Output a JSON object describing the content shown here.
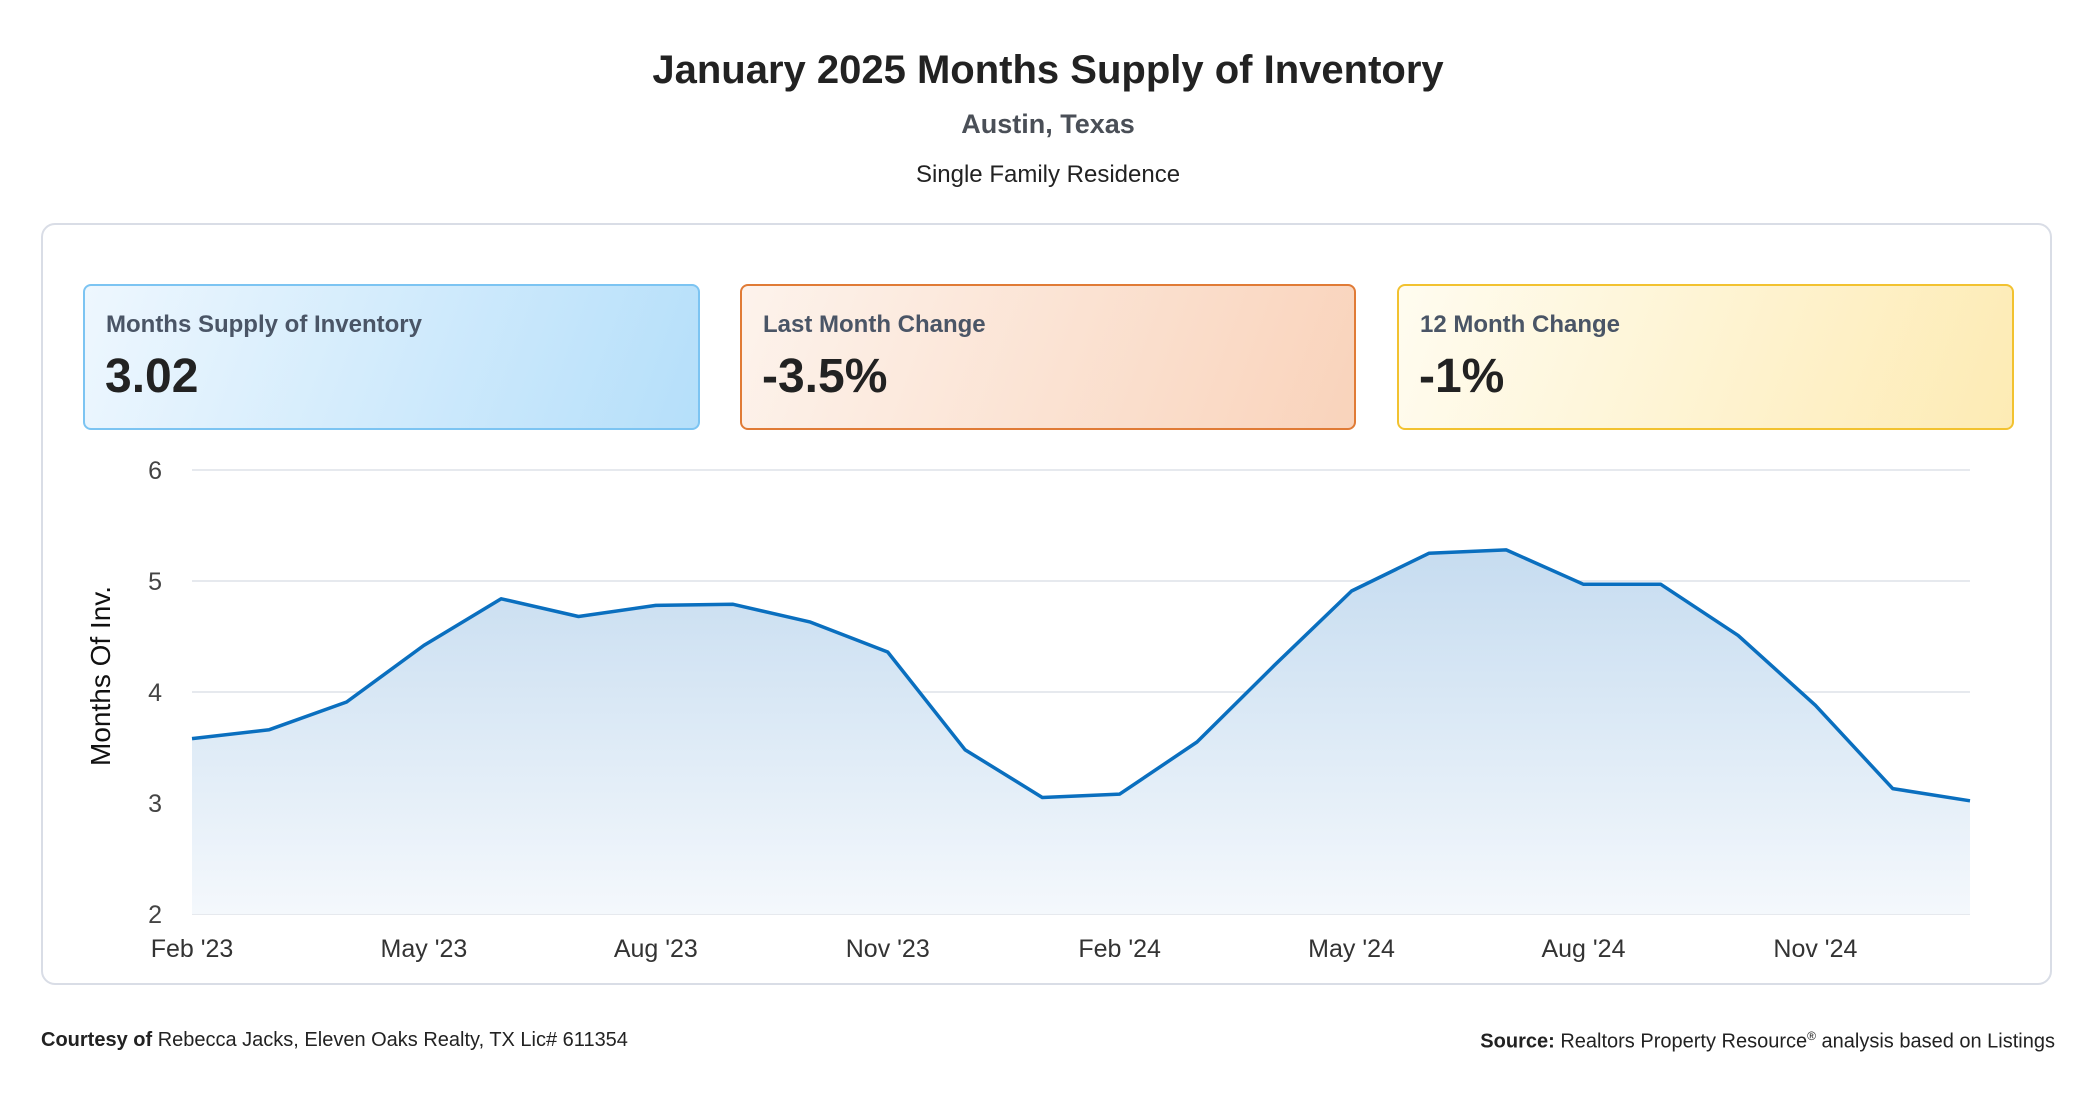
{
  "header": {
    "title": "January 2025 Months Supply of Inventory",
    "location": "Austin, Texas",
    "property_type": "Single Family Residence"
  },
  "cards": [
    {
      "label": "Months Supply of Inventory",
      "value": "3.02"
    },
    {
      "label": "Last Month Change",
      "value": "-3.5%"
    },
    {
      "label": "12 Month Change",
      "value": "-1%"
    }
  ],
  "colors": {
    "line": "#0a6fbf",
    "area_top": "#c6dcf0",
    "area_bottom": "#f4f8fc",
    "grid": "#dde2e8"
  },
  "chart_data": {
    "type": "area",
    "ylabel": "Months Of Inv.",
    "ylim": [
      2,
      6
    ],
    "yticks": [
      "2",
      "3",
      "4",
      "5",
      "6"
    ],
    "x": [
      "Feb '23",
      "Mar '23",
      "Apr '23",
      "May '23",
      "Jun '23",
      "Jul '23",
      "Aug '23",
      "Sep '23",
      "Oct '23",
      "Nov '23",
      "Dec '23",
      "Jan '24",
      "Feb '24",
      "Mar '24",
      "Apr '24",
      "May '24",
      "Jun '24",
      "Jul '24",
      "Aug '24",
      "Sep '24",
      "Oct '24",
      "Nov '24",
      "Dec '24",
      "Jan '25"
    ],
    "xtick_labels": [
      "Feb '23",
      "May '23",
      "Aug '23",
      "Nov '23",
      "Feb '24",
      "May '24",
      "Aug '24",
      "Nov '24"
    ],
    "series": [
      {
        "values": [
          3.58,
          3.66,
          3.91,
          4.42,
          4.84,
          4.68,
          4.78,
          4.79,
          4.63,
          4.36,
          3.48,
          3.05,
          3.08,
          3.55,
          4.24,
          4.91,
          5.25,
          5.28,
          4.97,
          4.97,
          4.51,
          3.88,
          3.13,
          3.02
        ]
      }
    ],
    "grid": true,
    "legend": "none"
  },
  "footer": {
    "courtesy_label": "Courtesy of",
    "courtesy_text": "Rebecca Jacks, Eleven Oaks Realty, TX Lic# 611354",
    "source_label": "Source:",
    "source_text": "Realtors Property Resource",
    "source_sup": "®",
    "source_suffix": "analysis based on Listings"
  }
}
